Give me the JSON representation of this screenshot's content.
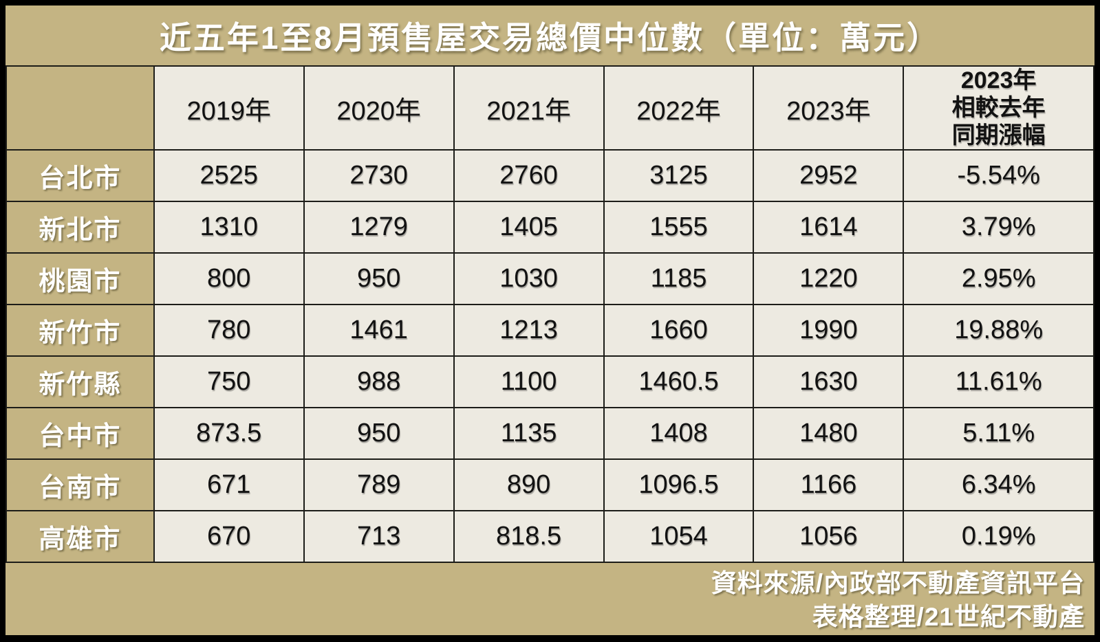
{
  "title": "近五年1至8月預售屋交易總價中位數（單位：萬元）",
  "colors": {
    "khaki_background": "#c4b483",
    "cell_background": "#edeae1",
    "grid_border": "#1c1c18",
    "frame_border": "#000000",
    "light_text": "#ffffff",
    "dark_text": "#121212"
  },
  "header": {
    "year_columns": [
      "2019年",
      "2020年",
      "2021年",
      "2022年",
      "2023年"
    ],
    "change_column_lines": [
      "2023年",
      "相較去年",
      "同期漲幅"
    ]
  },
  "rows": [
    {
      "city": "台北市",
      "values": [
        "2525",
        "2730",
        "2760",
        "3125",
        "2952"
      ],
      "change": "-5.54%"
    },
    {
      "city": "新北市",
      "values": [
        "1310",
        "1279",
        "1405",
        "1555",
        "1614"
      ],
      "change": "3.79%"
    },
    {
      "city": "桃園市",
      "values": [
        "800",
        "950",
        "1030",
        "1185",
        "1220"
      ],
      "change": "2.95%"
    },
    {
      "city": "新竹市",
      "values": [
        "780",
        "1461",
        "1213",
        "1660",
        "1990"
      ],
      "change": "19.88%"
    },
    {
      "city": "新竹縣",
      "values": [
        "750",
        "988",
        "1100",
        "1460.5",
        "1630"
      ],
      "change": "11.61%"
    },
    {
      "city": "台中市",
      "values": [
        "873.5",
        "950",
        "1135",
        "1408",
        "1480"
      ],
      "change": "5.11%"
    },
    {
      "city": "台南市",
      "values": [
        "671",
        "789",
        "890",
        "1096.5",
        "1166"
      ],
      "change": "6.34%"
    },
    {
      "city": "高雄市",
      "values": [
        "670",
        "713",
        "818.5",
        "1054",
        "1056"
      ],
      "change": "0.19%"
    }
  ],
  "footer": {
    "source_line": "資料來源/內政部不動產資訊平台",
    "credit_line": "表格整理/21世紀不動產"
  },
  "chart_data": {
    "type": "table",
    "title": "近五年1至8月預售屋交易總價中位數（單位：萬元）",
    "unit": "萬元",
    "categories": [
      "2019年",
      "2020年",
      "2021年",
      "2022年",
      "2023年",
      "2023年相較去年同期漲幅"
    ],
    "series": [
      {
        "name": "台北市",
        "values": [
          2525,
          2730,
          2760,
          3125,
          2952
        ],
        "yoy_change_pct": -5.54
      },
      {
        "name": "新北市",
        "values": [
          1310,
          1279,
          1405,
          1555,
          1614
        ],
        "yoy_change_pct": 3.79
      },
      {
        "name": "桃園市",
        "values": [
          800,
          950,
          1030,
          1185,
          1220
        ],
        "yoy_change_pct": 2.95
      },
      {
        "name": "新竹市",
        "values": [
          780,
          1461,
          1213,
          1660,
          1990
        ],
        "yoy_change_pct": 19.88
      },
      {
        "name": "新竹縣",
        "values": [
          750,
          988,
          1100,
          1460.5,
          1630
        ],
        "yoy_change_pct": 11.61
      },
      {
        "name": "台中市",
        "values": [
          873.5,
          950,
          1135,
          1408,
          1480
        ],
        "yoy_change_pct": 5.11
      },
      {
        "name": "台南市",
        "values": [
          671,
          789,
          890,
          1096.5,
          1166
        ],
        "yoy_change_pct": 6.34
      },
      {
        "name": "高雄市",
        "values": [
          670,
          713,
          818.5,
          1054,
          1056
        ],
        "yoy_change_pct": 0.19
      }
    ],
    "source": "資料來源/內政部不動產資訊平台",
    "credit": "表格整理/21世紀不動產"
  }
}
